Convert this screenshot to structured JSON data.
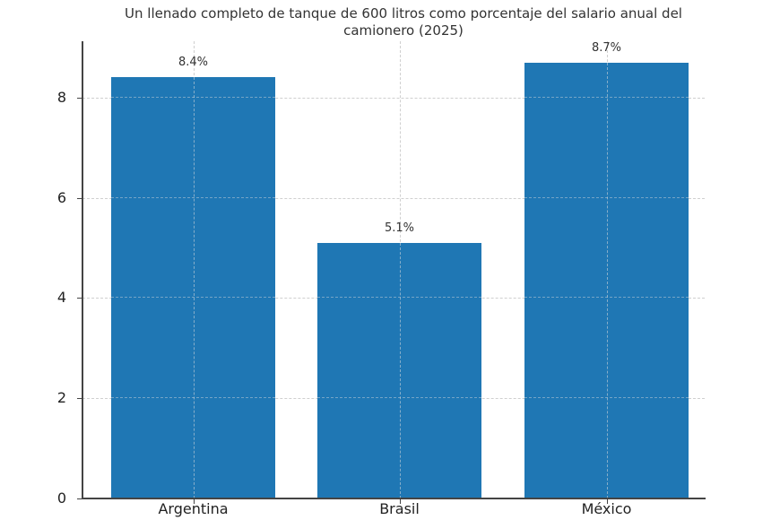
{
  "chart_data": {
    "type": "bar",
    "title": "Un llenado completo de tanque de 600 litros como porcentaje del salario anual del camionero (2025)",
    "title_lines": [
      "Un llenado completo de tanque de 600 litros como porcentaje del salario anual del",
      "camionero (2025)"
    ],
    "categories": [
      "Argentina",
      "Brasil",
      "México"
    ],
    "values": [
      8.4,
      5.1,
      8.7
    ],
    "data_labels": [
      "8.4%",
      "5.1%",
      "8.7%"
    ],
    "xlabel": "",
    "ylabel": "",
    "ylim": [
      0,
      9.1
    ],
    "yticks": [
      0,
      2,
      4,
      6,
      8
    ],
    "ytick_labels": [
      "0",
      "2",
      "4",
      "6",
      "8"
    ],
    "grid": true,
    "grid_style": "dashed",
    "bar_color": "#1f77b4",
    "legend": null
  }
}
